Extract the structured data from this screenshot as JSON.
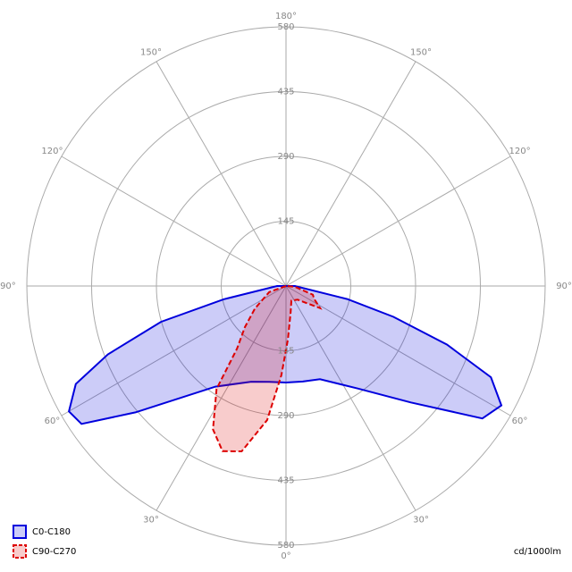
{
  "chart_data": {
    "type": "polar",
    "unit_label": "cd/1000lm",
    "rlim": [
      0,
      580
    ],
    "rticks": [
      145,
      290,
      435,
      580
    ],
    "angle_ticks": [
      {
        "value": 0,
        "label": "0°"
      },
      {
        "value": 30,
        "label": "30°"
      },
      {
        "value": -30,
        "label": "30°"
      },
      {
        "value": 60,
        "label": "60°"
      },
      {
        "value": -60,
        "label": "60°"
      },
      {
        "value": 90,
        "label": "90°"
      },
      {
        "value": -90,
        "label": "90°"
      },
      {
        "value": 120,
        "label": "120°"
      },
      {
        "value": -120,
        "label": "120°"
      },
      {
        "value": 150,
        "label": "150°"
      },
      {
        "value": -150,
        "label": "150°"
      },
      {
        "value": 180,
        "label": "180°"
      }
    ],
    "grid": true,
    "legend": "bottom-left",
    "series": [
      {
        "name": "C0-C180",
        "color": "#0000dd",
        "dashed": false,
        "angles": [
          -90,
          -78,
          -74,
          -69,
          -65,
          -60,
          -56,
          -50,
          -35,
          -20,
          -10,
          0,
          10,
          20,
          35,
          47,
          56,
          61,
          66,
          70,
          74,
          78,
          90
        ],
        "values": [
          20,
          143,
          291,
          427,
          519,
          561,
          552,
          440,
          275,
          228,
          218,
          216,
          217,
          222,
          280,
          382,
          530,
          551,
          502,
          383,
          250,
          140,
          20
        ]
      },
      {
        "name": "C90-C270",
        "color": "#dd0000",
        "dashed": true,
        "angles": [
          -70,
          -54,
          -45,
          -38,
          -34,
          -27,
          -21,
          -15,
          -8,
          -3,
          2,
          10,
          20,
          40,
          57,
          65,
          72,
          85
        ],
        "values": [
          40,
          86,
          130,
          178,
          278,
          360,
          396,
          383,
          303,
          200,
          120,
          60,
          35,
          40,
          91,
          70,
          63,
          20
        ]
      }
    ]
  }
}
